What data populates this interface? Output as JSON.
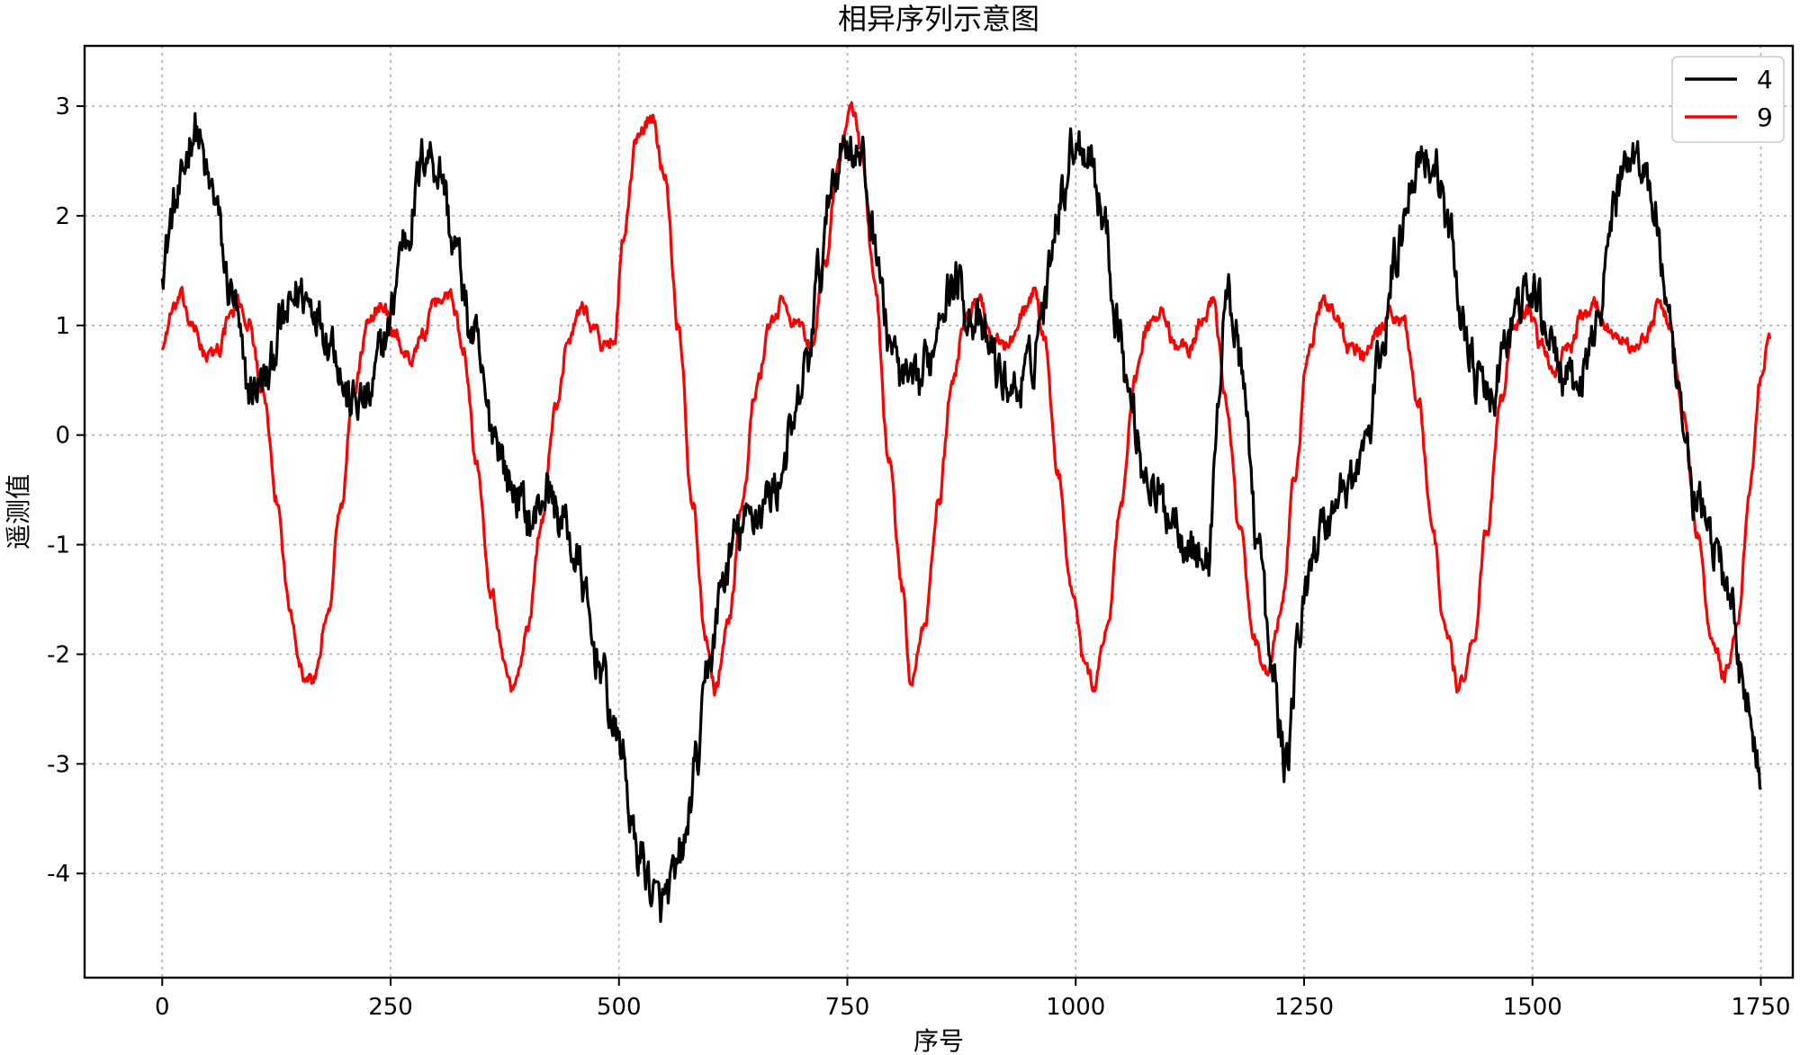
{
  "chart_data": {
    "type": "line",
    "title": "相异序列示意图",
    "xlabel": "序号",
    "ylabel": "遥测值",
    "xlim": [
      -85,
      1785
    ],
    "ylim": [
      -4.95,
      3.55
    ],
    "xticks": [
      0,
      250,
      500,
      750,
      1000,
      1250,
      1500,
      1750
    ],
    "yticks": [
      -4,
      -3,
      -2,
      -1,
      0,
      1,
      2,
      3
    ],
    "grid": true,
    "legend_position": "top-right",
    "n_points": 1701,
    "series": [
      {
        "name": "4",
        "color": "#000000",
        "noise": 0.18,
        "keypoints": [
          [
            0,
            1.6
          ],
          [
            15,
            2.1
          ],
          [
            35,
            2.8
          ],
          [
            55,
            2.2
          ],
          [
            75,
            1.3
          ],
          [
            95,
            0.4
          ],
          [
            115,
            0.5
          ],
          [
            130,
            1.0
          ],
          [
            150,
            1.3
          ],
          [
            165,
            1.2
          ],
          [
            185,
            0.9
          ],
          [
            205,
            0.3
          ],
          [
            225,
            0.3
          ],
          [
            245,
            0.9
          ],
          [
            265,
            1.8
          ],
          [
            290,
            2.6
          ],
          [
            305,
            2.4
          ],
          [
            320,
            1.7
          ],
          [
            340,
            0.9
          ],
          [
            360,
            0.1
          ],
          [
            385,
            -0.5
          ],
          [
            405,
            -0.8
          ],
          [
            420,
            -0.5
          ],
          [
            440,
            -0.8
          ],
          [
            455,
            -1.2
          ],
          [
            475,
            -2.0
          ],
          [
            500,
            -2.8
          ],
          [
            520,
            -3.8
          ],
          [
            545,
            -4.3
          ],
          [
            560,
            -4.1
          ],
          [
            570,
            -3.8
          ],
          [
            585,
            -3.0
          ],
          [
            600,
            -2.0
          ],
          [
            615,
            -1.3
          ],
          [
            630,
            -0.9
          ],
          [
            650,
            -0.7
          ],
          [
            670,
            -0.5
          ],
          [
            690,
            0.0
          ],
          [
            705,
            0.6
          ],
          [
            720,
            1.5
          ],
          [
            735,
            2.4
          ],
          [
            750,
            2.7
          ],
          [
            765,
            2.5
          ],
          [
            780,
            1.8
          ],
          [
            795,
            0.9
          ],
          [
            810,
            0.5
          ],
          [
            825,
            0.4
          ],
          [
            840,
            0.7
          ],
          [
            855,
            1.3
          ],
          [
            870,
            1.4
          ],
          [
            885,
            1.1
          ],
          [
            905,
            0.8
          ],
          [
            920,
            0.5
          ],
          [
            935,
            0.4
          ],
          [
            950,
            0.6
          ],
          [
            965,
            1.2
          ],
          [
            980,
            2.1
          ],
          [
            1000,
            2.7
          ],
          [
            1015,
            2.6
          ],
          [
            1030,
            2.0
          ],
          [
            1045,
            1.1
          ],
          [
            1060,
            0.3
          ],
          [
            1075,
            -0.3
          ],
          [
            1090,
            -0.6
          ],
          [
            1105,
            -0.7
          ],
          [
            1120,
            -0.9
          ],
          [
            1135,
            -1.1
          ],
          [
            1145,
            -1.2
          ],
          [
            1155,
            0.2
          ],
          [
            1165,
            1.3
          ],
          [
            1175,
            1.0
          ],
          [
            1185,
            0.3
          ],
          [
            1200,
            -1.0
          ],
          [
            1215,
            -2.2
          ],
          [
            1230,
            -3.0
          ],
          [
            1245,
            -1.8
          ],
          [
            1260,
            -1.0
          ],
          [
            1275,
            -0.8
          ],
          [
            1290,
            -0.5
          ],
          [
            1305,
            -0.4
          ],
          [
            1320,
            0.0
          ],
          [
            1335,
            0.8
          ],
          [
            1350,
            1.6
          ],
          [
            1365,
            2.3
          ],
          [
            1380,
            2.6
          ],
          [
            1395,
            2.4
          ],
          [
            1410,
            1.8
          ],
          [
            1425,
            1.0
          ],
          [
            1440,
            0.5
          ],
          [
            1455,
            0.3
          ],
          [
            1470,
            0.8
          ],
          [
            1485,
            1.2
          ],
          [
            1500,
            1.3
          ],
          [
            1515,
            1.0
          ],
          [
            1530,
            0.6
          ],
          [
            1545,
            0.4
          ],
          [
            1560,
            0.6
          ],
          [
            1575,
            1.3
          ],
          [
            1590,
            2.1
          ],
          [
            1605,
            2.6
          ],
          [
            1620,
            2.5
          ],
          [
            1635,
            2.0
          ],
          [
            1650,
            0.9
          ],
          [
            1665,
            0.0
          ],
          [
            1680,
            -0.6
          ],
          [
            1700,
            -1.0
          ],
          [
            1715,
            -1.5
          ],
          [
            1730,
            -2.2
          ],
          [
            1745,
            -2.9
          ],
          [
            1750,
            -3.2
          ]
        ]
      },
      {
        "name": "9",
        "color": "#ff0000",
        "noise": 0.06,
        "keypoints": [
          [
            0,
            0.8
          ],
          [
            10,
            1.1
          ],
          [
            20,
            1.25
          ],
          [
            35,
            0.95
          ],
          [
            50,
            0.7
          ],
          [
            62,
            0.8
          ],
          [
            75,
            1.1
          ],
          [
            85,
            1.2
          ],
          [
            95,
            1.0
          ],
          [
            110,
            0.4
          ],
          [
            125,
            -0.6
          ],
          [
            140,
            -1.6
          ],
          [
            155,
            -2.2
          ],
          [
            165,
            -2.25
          ],
          [
            180,
            -1.7
          ],
          [
            195,
            -0.7
          ],
          [
            210,
            0.4
          ],
          [
            225,
            1.0
          ],
          [
            240,
            1.2
          ],
          [
            255,
            0.9
          ],
          [
            270,
            0.7
          ],
          [
            285,
            0.9
          ],
          [
            300,
            1.2
          ],
          [
            315,
            1.3
          ],
          [
            330,
            0.8
          ],
          [
            345,
            -0.3
          ],
          [
            360,
            -1.4
          ],
          [
            375,
            -2.1
          ],
          [
            385,
            -2.3
          ],
          [
            400,
            -1.8
          ],
          [
            415,
            -0.8
          ],
          [
            430,
            0.2
          ],
          [
            445,
            0.9
          ],
          [
            460,
            1.2
          ],
          [
            470,
            1.0
          ],
          [
            485,
            0.8
          ],
          [
            495,
            0.9
          ],
          [
            505,
            1.8
          ],
          [
            520,
            2.7
          ],
          [
            535,
            2.9
          ],
          [
            550,
            2.4
          ],
          [
            565,
            1.0
          ],
          [
            580,
            -0.6
          ],
          [
            595,
            -1.8
          ],
          [
            605,
            -2.3
          ],
          [
            620,
            -1.7
          ],
          [
            635,
            -0.6
          ],
          [
            650,
            0.4
          ],
          [
            665,
            1.0
          ],
          [
            680,
            1.2
          ],
          [
            695,
            1.0
          ],
          [
            710,
            0.8
          ],
          [
            725,
            1.5
          ],
          [
            740,
            2.5
          ],
          [
            755,
            3.0
          ],
          [
            765,
            2.6
          ],
          [
            780,
            1.4
          ],
          [
            795,
            -0.2
          ],
          [
            810,
            -1.4
          ],
          [
            820,
            -2.3
          ],
          [
            835,
            -1.7
          ],
          [
            850,
            -0.6
          ],
          [
            865,
            0.5
          ],
          [
            880,
            1.1
          ],
          [
            895,
            1.2
          ],
          [
            910,
            0.9
          ],
          [
            925,
            0.8
          ],
          [
            940,
            1.1
          ],
          [
            955,
            1.3
          ],
          [
            965,
            0.9
          ],
          [
            980,
            -0.3
          ],
          [
            995,
            -1.4
          ],
          [
            1010,
            -2.1
          ],
          [
            1020,
            -2.3
          ],
          [
            1035,
            -1.7
          ],
          [
            1050,
            -0.6
          ],
          [
            1065,
            0.5
          ],
          [
            1080,
            1.0
          ],
          [
            1095,
            1.1
          ],
          [
            1110,
            0.8
          ],
          [
            1125,
            0.8
          ],
          [
            1140,
            1.1
          ],
          [
            1150,
            1.2
          ],
          [
            1165,
            0.3
          ],
          [
            1180,
            -0.9
          ],
          [
            1195,
            -1.9
          ],
          [
            1210,
            -2.2
          ],
          [
            1225,
            -1.6
          ],
          [
            1240,
            -0.4
          ],
          [
            1255,
            0.8
          ],
          [
            1270,
            1.2
          ],
          [
            1285,
            1.1
          ],
          [
            1300,
            0.8
          ],
          [
            1315,
            0.7
          ],
          [
            1330,
            0.9
          ],
          [
            1345,
            1.1
          ],
          [
            1360,
            1.0
          ],
          [
            1375,
            0.3
          ],
          [
            1390,
            -0.8
          ],
          [
            1405,
            -1.8
          ],
          [
            1420,
            -2.3
          ],
          [
            1435,
            -1.9
          ],
          [
            1450,
            -0.9
          ],
          [
            1465,
            0.3
          ],
          [
            1480,
            1.0
          ],
          [
            1495,
            1.1
          ],
          [
            1510,
            0.8
          ],
          [
            1525,
            0.6
          ],
          [
            1540,
            0.8
          ],
          [
            1555,
            1.1
          ],
          [
            1570,
            1.2
          ],
          [
            1580,
            1.0
          ],
          [
            1595,
            0.9
          ],
          [
            1610,
            0.8
          ],
          [
            1625,
            0.9
          ],
          [
            1640,
            1.2
          ],
          [
            1650,
            1.0
          ],
          [
            1665,
            0.2
          ],
          [
            1680,
            -0.9
          ],
          [
            1695,
            -1.8
          ],
          [
            1710,
            -2.2
          ],
          [
            1725,
            -1.7
          ],
          [
            1738,
            -0.5
          ],
          [
            1750,
            0.5
          ],
          [
            1760,
            0.9
          ]
        ]
      }
    ]
  }
}
